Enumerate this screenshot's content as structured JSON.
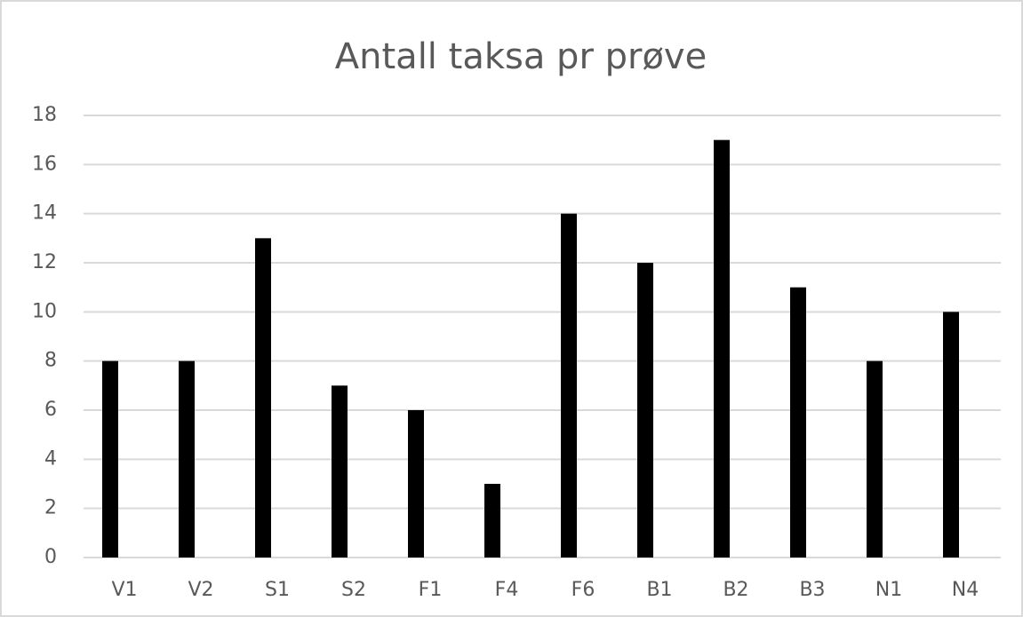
{
  "chart_data": {
    "type": "bar",
    "title": "Antall taksa pr prøve",
    "categories": [
      "V1",
      "V2",
      "S1",
      "S2",
      "F1",
      "F4",
      "F6",
      "B1",
      "B2",
      "B3",
      "N1",
      "N4"
    ],
    "values": [
      8,
      8,
      13,
      7,
      6,
      3,
      14,
      12,
      17,
      11,
      8,
      10
    ],
    "color": "#000000",
    "ylim": [
      0,
      18
    ],
    "yticks": [
      0,
      2,
      4,
      6,
      8,
      10,
      12,
      14,
      16,
      18
    ],
    "grid": true
  }
}
